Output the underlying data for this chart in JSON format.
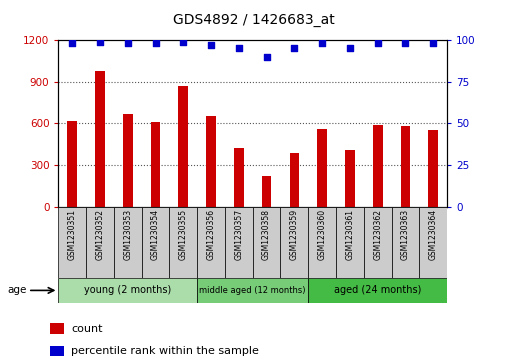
{
  "title": "GDS4892 / 1426683_at",
  "samples": [
    "GSM1230351",
    "GSM1230352",
    "GSM1230353",
    "GSM1230354",
    "GSM1230355",
    "GSM1230356",
    "GSM1230357",
    "GSM1230358",
    "GSM1230359",
    "GSM1230360",
    "GSM1230361",
    "GSM1230362",
    "GSM1230363",
    "GSM1230364"
  ],
  "counts": [
    620,
    980,
    670,
    610,
    870,
    650,
    420,
    220,
    390,
    560,
    410,
    590,
    585,
    550
  ],
  "percentiles": [
    98,
    99,
    98,
    98,
    99,
    97,
    95,
    90,
    95,
    98,
    95,
    98,
    98,
    98
  ],
  "ylim_left": [
    0,
    1200
  ],
  "ylim_right": [
    0,
    100
  ],
  "yticks_left": [
    0,
    300,
    600,
    900,
    1200
  ],
  "yticks_right": [
    0,
    25,
    50,
    75,
    100
  ],
  "groups": [
    {
      "label": "young (2 months)",
      "start": 0,
      "end": 5,
      "color": "#aaddaa"
    },
    {
      "label": "middle aged (12 months)",
      "start": 5,
      "end": 9,
      "color": "#77cc77"
    },
    {
      "label": "aged (24 months)",
      "start": 9,
      "end": 14,
      "color": "#44bb44"
    }
  ],
  "bar_color": "#cc0000",
  "dot_color": "#0000cc",
  "left_tick_color": "#cc0000",
  "right_tick_color": "#0000cc",
  "grid_color": "#555555",
  "bg_color": "#cccccc",
  "legend_count_label": "count",
  "legend_pct_label": "percentile rank within the sample",
  "age_label": "age"
}
